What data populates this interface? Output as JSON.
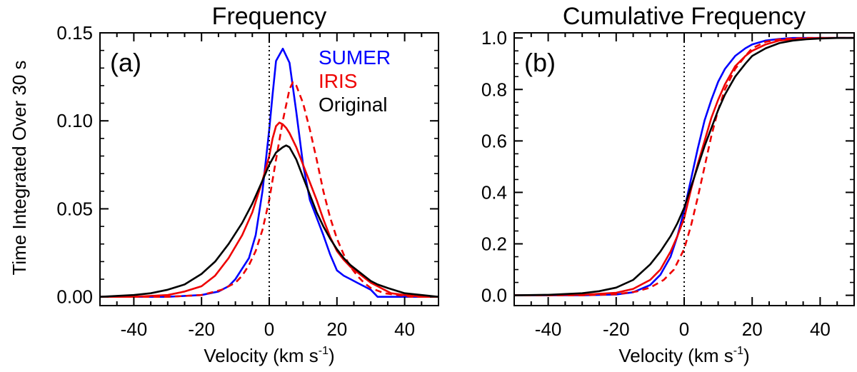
{
  "figure": {
    "ylabel": "Time Integrated Over 30 s"
  },
  "chart_data": [
    {
      "type": "line",
      "title": "Frequency",
      "panel_label": "(a)",
      "xlabel": "Velocity (km s",
      "xlabel_sup": "-1",
      "xlabel_end": ")",
      "xlim": [
        -50,
        50
      ],
      "ylim": [
        -0.005,
        0.15
      ],
      "xticks": [
        -40,
        -20,
        0,
        20,
        40
      ],
      "yticks": [
        "0.00",
        "0.05",
        "0.10",
        "0.15"
      ],
      "zero_line": 0,
      "grid": false,
      "legend_position": "top-right",
      "series": [
        {
          "name": "SUMER",
          "color": "#0000ff",
          "style": "solid",
          "x": [
            -50,
            -30,
            -20,
            -15,
            -12,
            -10,
            -8,
            -6,
            -4,
            -2,
            0,
            1,
            2,
            4,
            6,
            8,
            10,
            12,
            14,
            16,
            18,
            20,
            22,
            24,
            26,
            28,
            30,
            32,
            35,
            40,
            50
          ],
          "y": [
            0,
            0,
            0.001,
            0.003,
            0.006,
            0.01,
            0.016,
            0.022,
            0.035,
            0.06,
            0.095,
            0.115,
            0.134,
            0.141,
            0.133,
            0.105,
            0.075,
            0.055,
            0.045,
            0.035,
            0.024,
            0.015,
            0.012,
            0.01,
            0.008,
            0.006,
            0.004,
            0,
            0,
            0,
            0
          ]
        },
        {
          "name": "IRIS",
          "color": "#ee0000",
          "style": "solid",
          "x": [
            -50,
            -40,
            -30,
            -25,
            -20,
            -16,
            -12,
            -8,
            -5,
            -2,
            0,
            1,
            2,
            3,
            4,
            5,
            6,
            8,
            10,
            12,
            14,
            16,
            18,
            20,
            22,
            24,
            26,
            28,
            30,
            32,
            34,
            36,
            40,
            45,
            50
          ],
          "y": [
            0,
            0,
            0.001,
            0.003,
            0.006,
            0.012,
            0.022,
            0.035,
            0.048,
            0.066,
            0.08,
            0.09,
            0.097,
            0.099,
            0.098,
            0.096,
            0.093,
            0.085,
            0.075,
            0.065,
            0.055,
            0.044,
            0.034,
            0.026,
            0.021,
            0.017,
            0.014,
            0.011,
            0.008,
            0.006,
            0.004,
            0.002,
            0.001,
            0,
            0
          ]
        },
        {
          "name": "IRIS",
          "color": "#ee0000",
          "style": "dashed",
          "x": [
            -50,
            -30,
            -20,
            -14,
            -10,
            -8,
            -6,
            -4,
            -2,
            0,
            2,
            4,
            6,
            7,
            8,
            10,
            12,
            14,
            16,
            18,
            20,
            22,
            24,
            26,
            28,
            30,
            34,
            38,
            42,
            50
          ],
          "y": [
            0,
            0,
            0.001,
            0.004,
            0.008,
            0.012,
            0.018,
            0.026,
            0.038,
            0.055,
            0.078,
            0.1,
            0.118,
            0.122,
            0.12,
            0.11,
            0.095,
            0.078,
            0.06,
            0.045,
            0.033,
            0.024,
            0.017,
            0.012,
            0.008,
            0.005,
            0.002,
            0.001,
            0,
            0
          ]
        },
        {
          "name": "Original",
          "color": "#000000",
          "style": "solid",
          "x": [
            -50,
            -40,
            -35,
            -30,
            -25,
            -20,
            -16,
            -12,
            -8,
            -5,
            -2,
            0,
            2,
            4,
            5,
            6,
            8,
            10,
            12,
            14,
            16,
            18,
            20,
            22,
            24,
            26,
            28,
            30,
            32,
            35,
            40,
            45,
            50
          ],
          "y": [
            0,
            0.001,
            0.002,
            0.004,
            0.007,
            0.013,
            0.02,
            0.03,
            0.042,
            0.053,
            0.066,
            0.075,
            0.082,
            0.085,
            0.086,
            0.085,
            0.078,
            0.068,
            0.058,
            0.048,
            0.04,
            0.033,
            0.027,
            0.022,
            0.018,
            0.015,
            0.012,
            0.009,
            0.007,
            0.005,
            0.002,
            0.001,
            0
          ]
        }
      ]
    },
    {
      "type": "line",
      "title": "Cumulative Frequency",
      "panel_label": "(b)",
      "xlabel": "Velocity (km s",
      "xlabel_sup": "-1",
      "xlabel_end": ")",
      "xlim": [
        -50,
        50
      ],
      "ylim": [
        -0.04,
        1.02
      ],
      "xticks": [
        -40,
        -20,
        0,
        20,
        40
      ],
      "yticks": [
        "0.0",
        "0.2",
        "0.4",
        "0.6",
        "0.8",
        "1.0"
      ],
      "zero_line": 0,
      "grid": false,
      "series": [
        {
          "name": "SUMER",
          "color": "#0000ff",
          "style": "solid",
          "x": [
            -50,
            -30,
            -20,
            -15,
            -10,
            -7,
            -4,
            -2,
            0,
            2,
            4,
            6,
            8,
            10,
            12,
            15,
            18,
            20,
            24,
            28,
            32,
            36,
            40,
            50
          ],
          "y": [
            0,
            0,
            0.003,
            0.012,
            0.04,
            0.08,
            0.15,
            0.23,
            0.33,
            0.45,
            0.57,
            0.68,
            0.76,
            0.83,
            0.88,
            0.93,
            0.96,
            0.975,
            0.99,
            0.996,
            1.0,
            1.0,
            1.0,
            1.0
          ]
        },
        {
          "name": "IRIS",
          "color": "#ee0000",
          "style": "solid",
          "x": [
            -50,
            -30,
            -20,
            -15,
            -10,
            -7,
            -4,
            -2,
            0,
            2,
            4,
            6,
            8,
            10,
            12,
            15,
            18,
            20,
            24,
            28,
            32,
            36,
            40,
            50
          ],
          "y": [
            0,
            0.002,
            0.01,
            0.025,
            0.06,
            0.1,
            0.17,
            0.23,
            0.3,
            0.41,
            0.51,
            0.6,
            0.69,
            0.76,
            0.82,
            0.89,
            0.93,
            0.95,
            0.975,
            0.99,
            0.995,
            0.998,
            1.0,
            1.0
          ]
        },
        {
          "name": "IRIS",
          "color": "#ee0000",
          "style": "dashed",
          "x": [
            -50,
            -30,
            -20,
            -14,
            -10,
            -6,
            -3,
            0,
            2,
            4,
            6,
            8,
            10,
            12,
            15,
            18,
            20,
            24,
            28,
            32,
            36,
            40,
            50
          ],
          "y": [
            0,
            0,
            0.004,
            0.015,
            0.03,
            0.06,
            0.1,
            0.18,
            0.27,
            0.38,
            0.5,
            0.62,
            0.72,
            0.8,
            0.88,
            0.93,
            0.96,
            0.985,
            0.995,
            0.998,
            1.0,
            1.0,
            1.0
          ]
        },
        {
          "name": "Original",
          "color": "#000000",
          "style": "solid",
          "x": [
            -50,
            -40,
            -30,
            -25,
            -20,
            -15,
            -10,
            -7,
            -4,
            -2,
            0,
            2,
            4,
            6,
            8,
            10,
            12,
            15,
            18,
            20,
            24,
            28,
            32,
            36,
            40,
            45,
            50
          ],
          "y": [
            0,
            0.002,
            0.008,
            0.016,
            0.03,
            0.06,
            0.12,
            0.17,
            0.23,
            0.28,
            0.34,
            0.42,
            0.5,
            0.58,
            0.65,
            0.72,
            0.78,
            0.85,
            0.9,
            0.93,
            0.96,
            0.98,
            0.99,
            0.995,
            0.998,
            1.0,
            1.0
          ]
        }
      ]
    }
  ]
}
